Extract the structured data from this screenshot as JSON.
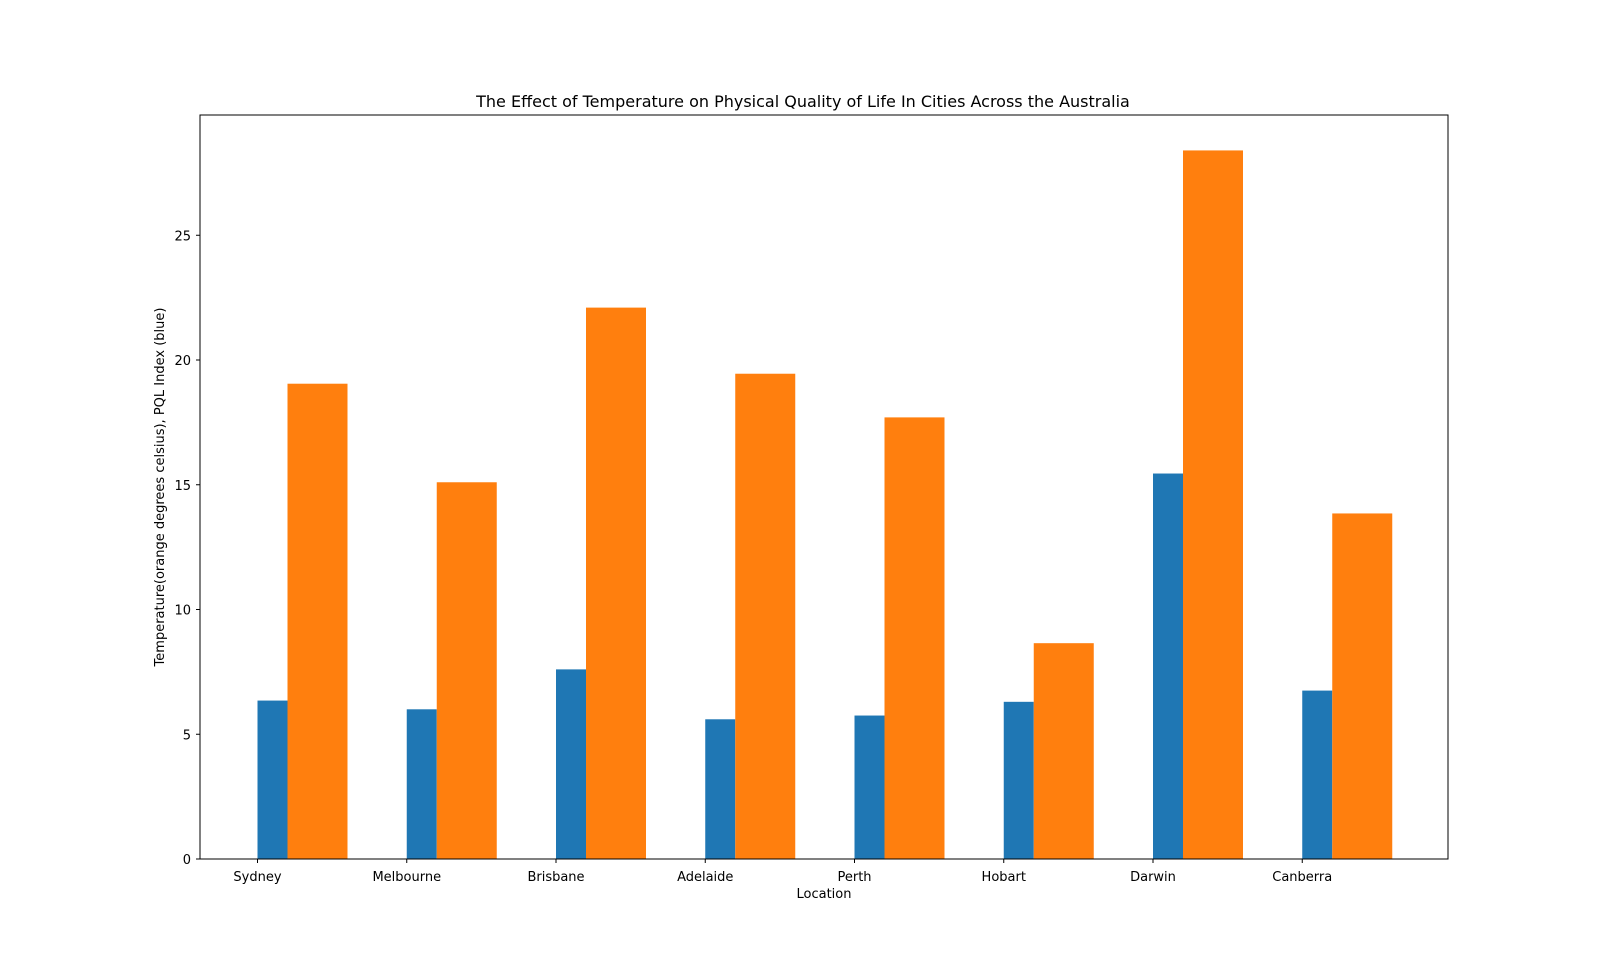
{
  "chart_data": {
    "type": "bar",
    "title": "The Effect of Temperature on Physical Quality of Life In Cities Across the Australia",
    "xlabel": "Location",
    "ylabel": "Temperature(orange degrees celsius), PQL Index (blue)",
    "categories": [
      "Sydney",
      "Melbourne",
      "Brisbane",
      "Adelaide",
      "Perth",
      "Hobart",
      "Darwin",
      "Canberra"
    ],
    "series": [
      {
        "color": "#1f77b4",
        "values": [
          6.35,
          6.0,
          7.6,
          5.6,
          5.75,
          6.3,
          15.45,
          6.75
        ]
      },
      {
        "color": "#ff7f0e",
        "values": [
          19.05,
          15.1,
          22.1,
          19.45,
          17.7,
          8.65,
          28.4,
          13.85
        ]
      }
    ],
    "ylim": [
      0,
      29.82
    ],
    "yticks": [
      0,
      5,
      10,
      15,
      20,
      25
    ],
    "grid": false,
    "legend": "none"
  }
}
